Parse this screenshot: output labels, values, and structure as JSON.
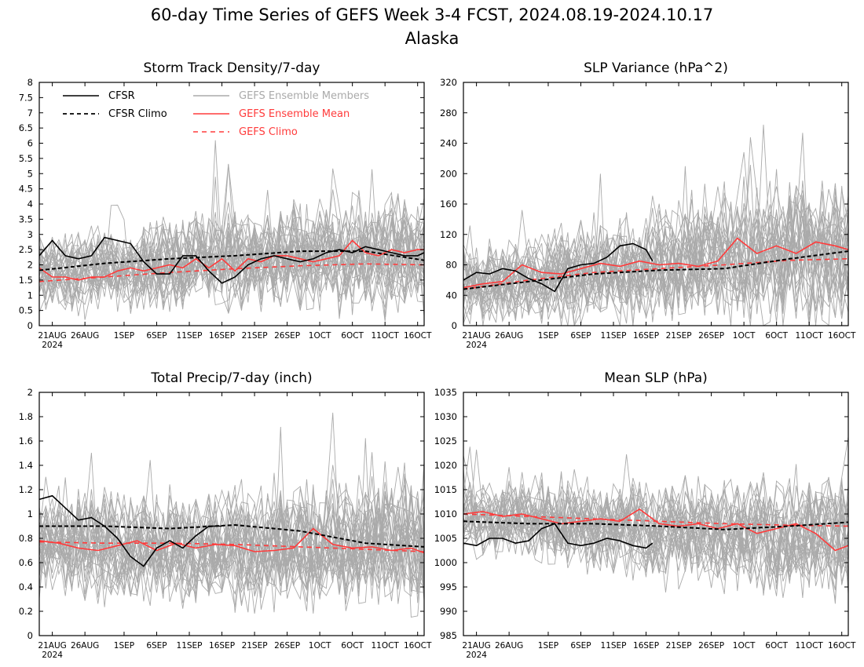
{
  "figure": {
    "title_line1": "60-day Time Series of GEFS Week 3-4 FCST, 2024.08.19-2024.10.17",
    "title_line2": "Alaska"
  },
  "colors": {
    "cfsr": "#000000",
    "cfsr_climo": "#000000",
    "members": "#aaaaaa",
    "ens_mean": "#ff3b3b",
    "gefs_climo": "#ff3b3b"
  },
  "legend": {
    "cfsr": "CFSR",
    "cfsr_climo": "CFSR Climo",
    "members": "GEFS Ensemble Members",
    "ens_mean": "GEFS Ensemble Mean",
    "gefs_climo": "GEFS Climo"
  },
  "chart_data": [
    {
      "type": "line",
      "title": "Storm Track Density/7-day",
      "ylim": [
        0,
        8
      ],
      "yticks": [
        "0",
        "0.5",
        "1",
        "1.5",
        "2",
        "2.5",
        "3",
        "3.5",
        "4",
        "4.5",
        "5",
        "5.5",
        "6",
        "6.5",
        "7",
        "7.5",
        "8"
      ],
      "xticks": [
        "21AUG",
        "26AUG",
        "1SEP",
        "6SEP",
        "11SEP",
        "16SEP",
        "21SEP",
        "26SEP",
        "1OCT",
        "6OCT",
        "11OCT",
        "16OCT"
      ],
      "xticks_year": "2024",
      "x_days": [
        0,
        59
      ],
      "members_spread": {
        "center": 1.8,
        "center_end": 2.4,
        "amp": 0.9,
        "amp_end": 1.3
      },
      "series": [
        {
          "name": "CFSR",
          "x": [
            0,
            2,
            4,
            6,
            8,
            10,
            12,
            14,
            16,
            18,
            20,
            22,
            24,
            26,
            28,
            30,
            32,
            34,
            36,
            38,
            40,
            42,
            44,
            46,
            48,
            50,
            52,
            54,
            56,
            58,
            59
          ],
          "values": [
            2.3,
            2.8,
            2.3,
            2.2,
            2.3,
            2.9,
            2.8,
            2.7,
            2.1,
            1.7,
            1.7,
            2.3,
            2.3,
            1.8,
            1.4,
            1.6,
            2.0,
            2.2,
            2.3,
            2.2,
            2.1,
            2.2,
            2.4,
            2.5,
            2.4,
            2.6,
            2.5,
            2.4,
            2.3,
            2.3,
            2.4
          ]
        },
        {
          "name": "CFSR Climo",
          "x": [
            0,
            10,
            20,
            30,
            40,
            50,
            59
          ],
          "values": [
            1.82,
            2.05,
            2.2,
            2.3,
            2.45,
            2.45,
            2.15
          ]
        },
        {
          "name": "GEFS Ensemble Mean",
          "x": [
            0,
            2,
            4,
            6,
            8,
            10,
            12,
            14,
            16,
            18,
            20,
            22,
            24,
            26,
            28,
            30,
            32,
            34,
            36,
            38,
            40,
            42,
            44,
            46,
            48,
            50,
            52,
            54,
            56,
            58,
            59
          ],
          "values": [
            1.9,
            1.6,
            1.6,
            1.5,
            1.6,
            1.6,
            1.8,
            1.9,
            1.8,
            1.9,
            2.0,
            1.9,
            2.2,
            1.9,
            2.2,
            1.8,
            2.2,
            2.1,
            2.3,
            2.3,
            2.2,
            2.1,
            2.2,
            2.3,
            2.8,
            2.4,
            2.3,
            2.5,
            2.4,
            2.5,
            2.5
          ]
        },
        {
          "name": "GEFS Climo",
          "x": [
            0,
            10,
            20,
            30,
            40,
            50,
            59
          ],
          "values": [
            1.45,
            1.6,
            1.75,
            1.87,
            1.97,
            2.03,
            2.0
          ]
        }
      ]
    },
    {
      "type": "line",
      "title": "SLP Variance (hPa^2)",
      "ylim": [
        0,
        320
      ],
      "yticks": [
        "0",
        "40",
        "80",
        "120",
        "160",
        "200",
        "240",
        "280",
        "320"
      ],
      "xticks": [
        "21AUG",
        "26AUG",
        "1SEP",
        "6SEP",
        "11SEP",
        "16SEP",
        "21SEP",
        "26SEP",
        "1OCT",
        "6OCT",
        "11OCT",
        "16OCT"
      ],
      "xticks_year": "2024",
      "x_days": [
        0,
        59
      ],
      "members_spread": {
        "center": 55,
        "center_end": 100,
        "amp": 35,
        "amp_end": 70
      },
      "series": [
        {
          "name": "CFSR",
          "x": [
            0,
            2,
            4,
            6,
            8,
            10,
            12,
            14,
            16,
            18,
            20,
            22,
            24,
            26,
            28,
            29
          ],
          "values": [
            60,
            70,
            68,
            75,
            72,
            62,
            55,
            45,
            75,
            80,
            82,
            90,
            105,
            108,
            100,
            85
          ]
        },
        {
          "name": "CFSR Climo",
          "x": [
            0,
            10,
            20,
            30,
            40,
            50,
            59
          ],
          "values": [
            48,
            58,
            68,
            73,
            75,
            88,
            98
          ]
        },
        {
          "name": "GEFS Ensemble Mean",
          "x": [
            0,
            3,
            6,
            9,
            12,
            15,
            18,
            21,
            24,
            27,
            30,
            33,
            36,
            39,
            42,
            45,
            48,
            51,
            54,
            57,
            59
          ],
          "values": [
            50,
            55,
            58,
            80,
            70,
            68,
            75,
            82,
            78,
            85,
            80,
            82,
            78,
            85,
            115,
            95,
            105,
            95,
            110,
            105,
            100
          ]
        },
        {
          "name": "GEFS Climo",
          "x": [
            0,
            10,
            20,
            30,
            40,
            50,
            59
          ],
          "values": [
            48,
            60,
            70,
            75,
            80,
            86,
            88
          ]
        }
      ]
    },
    {
      "type": "line",
      "title": "Total Precip/7-day (inch)",
      "ylim": [
        0,
        2
      ],
      "yticks": [
        "0",
        "0.2",
        "0.4",
        "0.6",
        "0.8",
        "1",
        "1.2",
        "1.4",
        "1.6",
        "1.8",
        "2"
      ],
      "xticks": [
        "21AUG",
        "26AUG",
        "1SEP",
        "6SEP",
        "11SEP",
        "16SEP",
        "21SEP",
        "26SEP",
        "1OCT",
        "6OCT",
        "11OCT",
        "16OCT"
      ],
      "xticks_year": "2024",
      "x_days": [
        0,
        59
      ],
      "members_spread": {
        "center": 0.75,
        "center_end": 0.72,
        "amp": 0.3,
        "amp_end": 0.4
      },
      "series": [
        {
          "name": "CFSR",
          "x": [
            0,
            2,
            4,
            6,
            8,
            10,
            12,
            14,
            16,
            18,
            20,
            22,
            24,
            26,
            28
          ],
          "values": [
            1.12,
            1.15,
            1.05,
            0.95,
            0.97,
            0.9,
            0.8,
            0.65,
            0.57,
            0.72,
            0.78,
            0.72,
            0.82,
            0.9,
            0.9
          ]
        },
        {
          "name": "CFSR Climo",
          "x": [
            0,
            10,
            20,
            30,
            40,
            50,
            59
          ],
          "values": [
            0.9,
            0.9,
            0.88,
            0.91,
            0.86,
            0.76,
            0.73
          ]
        },
        {
          "name": "GEFS Ensemble Mean",
          "x": [
            0,
            3,
            6,
            9,
            12,
            15,
            18,
            21,
            24,
            27,
            30,
            33,
            36,
            39,
            42,
            45,
            48,
            51,
            54,
            57,
            59
          ],
          "values": [
            0.78,
            0.76,
            0.72,
            0.7,
            0.74,
            0.78,
            0.7,
            0.76,
            0.72,
            0.75,
            0.74,
            0.69,
            0.7,
            0.72,
            0.88,
            0.75,
            0.72,
            0.73,
            0.7,
            0.72,
            0.68
          ]
        },
        {
          "name": "GEFS Climo",
          "x": [
            0,
            10,
            20,
            30,
            40,
            50,
            59
          ],
          "values": [
            0.77,
            0.76,
            0.76,
            0.75,
            0.73,
            0.71,
            0.69
          ]
        }
      ]
    },
    {
      "type": "line",
      "title": "Mean SLP (hPa)",
      "ylim": [
        985,
        1035
      ],
      "yticks": [
        "985",
        "990",
        "995",
        "1000",
        "1005",
        "1010",
        "1015",
        "1020",
        "1025",
        "1030",
        "1035"
      ],
      "xticks": [
        "21AUG",
        "26AUG",
        "1SEP",
        "6SEP",
        "11SEP",
        "16SEP",
        "21SEP",
        "26SEP",
        "1OCT",
        "6OCT",
        "11OCT",
        "16OCT"
      ],
      "xticks_year": "2024",
      "x_days": [
        0,
        59
      ],
      "members_spread": {
        "center": 1009,
        "center_end": 1005,
        "amp": 5,
        "amp_end": 9
      },
      "series": [
        {
          "name": "CFSR",
          "x": [
            0,
            2,
            4,
            6,
            8,
            10,
            12,
            14,
            16,
            18,
            20,
            22,
            24,
            26,
            28,
            29
          ],
          "values": [
            1004,
            1003.5,
            1005,
            1005,
            1004,
            1004.5,
            1007,
            1008,
            1004,
            1003.5,
            1004,
            1005,
            1004.5,
            1003.5,
            1003,
            1004
          ]
        },
        {
          "name": "CFSR Climo",
          "x": [
            0,
            10,
            20,
            30,
            40,
            50,
            59
          ],
          "values": [
            1008.5,
            1008,
            1008,
            1007.5,
            1006.8,
            1007.5,
            1008.3
          ]
        },
        {
          "name": "GEFS Ensemble Mean",
          "x": [
            0,
            3,
            6,
            9,
            12,
            15,
            18,
            21,
            24,
            27,
            30,
            33,
            36,
            39,
            42,
            45,
            48,
            51,
            54,
            57,
            59
          ],
          "values": [
            1010,
            1010.5,
            1009.5,
            1010,
            1009,
            1008,
            1008.5,
            1009,
            1008.5,
            1011,
            1008,
            1007.5,
            1008,
            1007,
            1008,
            1006,
            1007,
            1008,
            1006,
            1002.5,
            1003.5
          ]
        },
        {
          "name": "GEFS Climo",
          "x": [
            0,
            10,
            20,
            30,
            40,
            50,
            59
          ],
          "values": [
            1010,
            1009.5,
            1009,
            1008.5,
            1008,
            1007.7,
            1007.5
          ]
        }
      ]
    }
  ]
}
